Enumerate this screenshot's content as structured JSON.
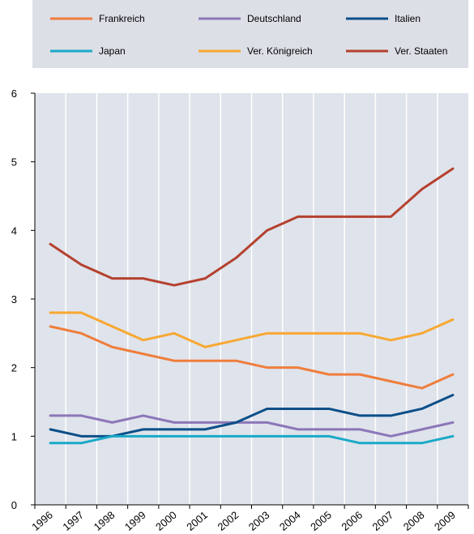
{
  "chart_data": {
    "type": "line",
    "title": "",
    "xlabel": "",
    "ylabel": "",
    "x": [
      "1996",
      "1997",
      "1998",
      "1999",
      "2000",
      "2001",
      "2002",
      "2003",
      "2004",
      "2005",
      "2006",
      "2007",
      "2008",
      "2009"
    ],
    "ylim": [
      0,
      6
    ],
    "yticks": [
      "0",
      "1",
      "2",
      "3",
      "4",
      "5",
      "6"
    ],
    "grid": "vertical",
    "legend_position": "top",
    "series": [
      {
        "name": "Frankreich",
        "color": "#ef7d3c",
        "values": [
          2.6,
          2.5,
          2.3,
          2.2,
          2.1,
          2.1,
          2.1,
          2.0,
          2.0,
          1.9,
          1.9,
          1.8,
          1.7,
          1.9
        ]
      },
      {
        "name": "Deutschland",
        "color": "#8b77b8",
        "values": [
          1.3,
          1.3,
          1.2,
          1.3,
          1.2,
          1.2,
          1.2,
          1.2,
          1.1,
          1.1,
          1.1,
          1.0,
          1.1,
          1.2
        ]
      },
      {
        "name": "Italien",
        "color": "#0b4f88",
        "values": [
          1.1,
          1.0,
          1.0,
          1.1,
          1.1,
          1.1,
          1.2,
          1.4,
          1.4,
          1.4,
          1.3,
          1.3,
          1.4,
          1.6
        ]
      },
      {
        "name": "Japan",
        "color": "#1aa9c8",
        "values": [
          0.9,
          0.9,
          1.0,
          1.0,
          1.0,
          1.0,
          1.0,
          1.0,
          1.0,
          1.0,
          0.9,
          0.9,
          0.9,
          1.0
        ]
      },
      {
        "name": "Ver. Königreich",
        "color": "#f7a833",
        "values": [
          2.8,
          2.8,
          2.6,
          2.4,
          2.5,
          2.3,
          2.4,
          2.5,
          2.5,
          2.5,
          2.5,
          2.4,
          2.5,
          2.7
        ]
      },
      {
        "name": "Ver. Staaten",
        "color": "#b5412f",
        "values": [
          3.8,
          3.5,
          3.3,
          3.3,
          3.2,
          3.3,
          3.6,
          4.0,
          4.2,
          4.2,
          4.2,
          4.2,
          4.6,
          4.9
        ]
      }
    ]
  }
}
